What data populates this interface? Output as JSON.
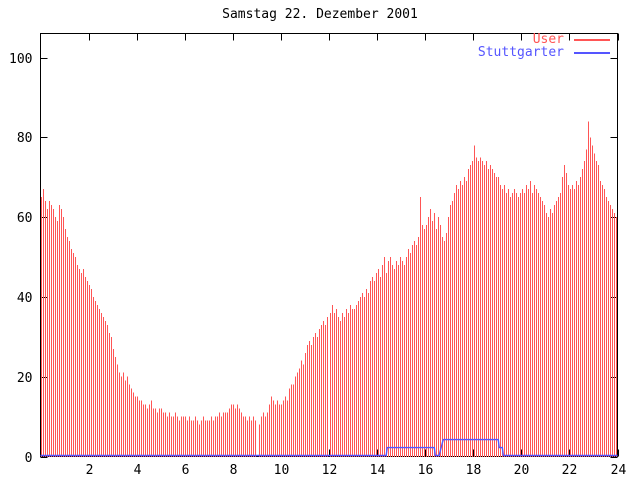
{
  "page": {
    "background": "#ffffff",
    "foreground": "#000000"
  },
  "chart_data": {
    "type": "bar",
    "title": "Samstag 22. Dezember 2001",
    "xlabel": "",
    "ylabel": "",
    "xlim": [
      0,
      24
    ],
    "ylim": [
      0,
      100
    ],
    "xticks": [
      2,
      4,
      6,
      8,
      10,
      12,
      14,
      16,
      18,
      20,
      22,
      24
    ],
    "yticks": [
      0,
      20,
      40,
      60,
      80,
      100
    ],
    "grid": false,
    "legend_position": "top-right",
    "x_unit": "hour-of-day",
    "sample_interval_minutes": 5,
    "series": [
      {
        "name": "User",
        "type": "impulses",
        "color": "#ff5555",
        "values": [
          65,
          67,
          64,
          62,
          64,
          63,
          62,
          60,
          59,
          63,
          62,
          60,
          57,
          55,
          54,
          52,
          51,
          50,
          48,
          47,
          46,
          47,
          45,
          44,
          43,
          42,
          40,
          39,
          38,
          37,
          36,
          35,
          34,
          33,
          31,
          30,
          27,
          25,
          23,
          21,
          20,
          21,
          19,
          20,
          18,
          17,
          16,
          15,
          15,
          14,
          14,
          13,
          13,
          12,
          13,
          14,
          12,
          12,
          11,
          12,
          12,
          11,
          11,
          10,
          11,
          10,
          10,
          11,
          10,
          9,
          10,
          10,
          10,
          9,
          10,
          9,
          9,
          10,
          9,
          8,
          9,
          10,
          9,
          9,
          9,
          10,
          9,
          10,
          10,
          11,
          10,
          11,
          11,
          11,
          12,
          13,
          13,
          12,
          13,
          12,
          11,
          10,
          10,
          9,
          10,
          9,
          10,
          9,
          0,
          8,
          10,
          11,
          10,
          11,
          13,
          15,
          14,
          13,
          14,
          13,
          13,
          14,
          15,
          14,
          17,
          18,
          18,
          20,
          21,
          22,
          24,
          23,
          26,
          28,
          29,
          28,
          30,
          31,
          30,
          32,
          33,
          34,
          33,
          35,
          36,
          38,
          36,
          37,
          35,
          34,
          36,
          35,
          37,
          36,
          38,
          37,
          37,
          38,
          39,
          40,
          41,
          40,
          42,
          41,
          44,
          45,
          44,
          46,
          47,
          45,
          48,
          50,
          46,
          49,
          50,
          48,
          47,
          49,
          48,
          50,
          49,
          48,
          50,
          52,
          51,
          53,
          54,
          53,
          55,
          65,
          58,
          57,
          58,
          60,
          62,
          59,
          61,
          57,
          60,
          58,
          55,
          54,
          56,
          60,
          63,
          64,
          66,
          68,
          67,
          69,
          68,
          70,
          69,
          72,
          73,
          74,
          78,
          75,
          74,
          75,
          74,
          73,
          74,
          72,
          73,
          72,
          71,
          70,
          70,
          68,
          67,
          68,
          66,
          67,
          65,
          66,
          67,
          66,
          65,
          66,
          67,
          66,
          68,
          67,
          69,
          66,
          68,
          67,
          66,
          65,
          64,
          63,
          61,
          60,
          62,
          61,
          63,
          64,
          65,
          66,
          70,
          73,
          71,
          68,
          67,
          68,
          67,
          69,
          68,
          70,
          72,
          74,
          77,
          84,
          80,
          78,
          76,
          74,
          73,
          69,
          68,
          67,
          65,
          64,
          63,
          62,
          61,
          60
        ]
      },
      {
        "name": "Stuttgarter",
        "type": "line",
        "color": "#5555ff",
        "points": [
          [
            0,
            0
          ],
          [
            14.38,
            0
          ],
          [
            14.42,
            2
          ],
          [
            16.38,
            2
          ],
          [
            16.42,
            0
          ],
          [
            16.58,
            0
          ],
          [
            16.75,
            4
          ],
          [
            19.04,
            4
          ],
          [
            19.08,
            2
          ],
          [
            19.21,
            2
          ],
          [
            19.25,
            0
          ],
          [
            24,
            0
          ]
        ]
      }
    ]
  }
}
